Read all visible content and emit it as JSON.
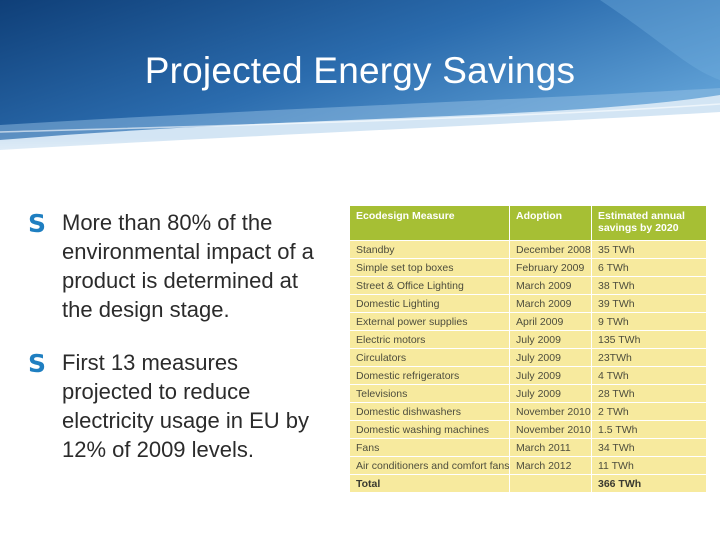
{
  "slide": {
    "title": "Projected Energy Savings",
    "bullet_glyph": "S",
    "bullets": [
      "More than 80% of the environmental impact of a product is determined at the design stage.",
      "First 13 measures projected to reduce electricity usage in EU by 12% of 2009 levels."
    ]
  },
  "colors": {
    "banner_blue": "#1d5ea0",
    "bullet_blue": "#1f7fc1",
    "table_header": "#a6bf34",
    "table_body": "#f7ea9e"
  },
  "table": {
    "headers": [
      "Ecodesign Measure",
      "Adoption",
      "Estimated annual savings by 2020"
    ],
    "rows": [
      [
        "Standby",
        "December 2008",
        "35 TWh"
      ],
      [
        "Simple set top boxes",
        "February 2009",
        "6 TWh"
      ],
      [
        "Street & Office Lighting",
        "March 2009",
        "38 TWh"
      ],
      [
        "Domestic Lighting",
        "March 2009",
        "39 TWh"
      ],
      [
        "External power supplies",
        "April 2009",
        "9 TWh"
      ],
      [
        "Electric motors",
        "July 2009",
        "135 TWh"
      ],
      [
        "Circulators",
        "July 2009",
        "23TWh"
      ],
      [
        "Domestic refrigerators",
        "July 2009",
        "4 TWh"
      ],
      [
        "Televisions",
        "July 2009",
        "28 TWh"
      ],
      [
        "Domestic dishwashers",
        "November 2010",
        "2 TWh"
      ],
      [
        "Domestic washing machines",
        "November 2010",
        "1.5 TWh"
      ],
      [
        "Fans",
        "March 2011",
        "34 TWh"
      ],
      [
        "Air conditioners and comfort fans",
        "March 2012",
        "11 TWh"
      ]
    ],
    "total": [
      "Total",
      "",
      "366 TWh"
    ]
  }
}
